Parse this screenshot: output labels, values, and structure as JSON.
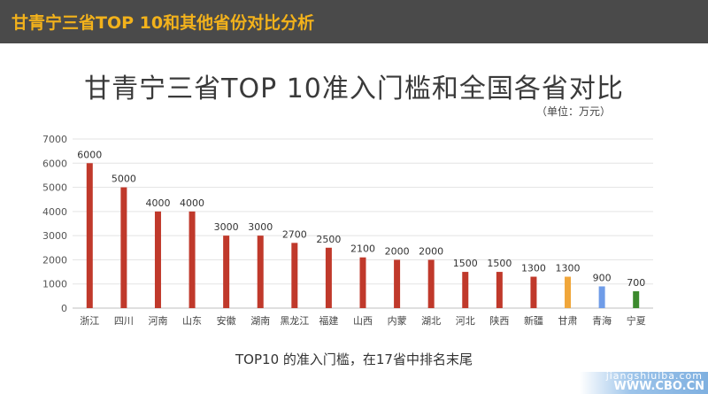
{
  "header": {
    "title": "甘青宁三省TOP  10和其他省份对比分析"
  },
  "chart_data": {
    "type": "bar",
    "title": "甘青宁三省TOP  10准入门槛和全国各省对比",
    "unit_note": "（单位：万元）",
    "categories": [
      "浙江",
      "四川",
      "河南",
      "山东",
      "安徽",
      "湖南",
      "黑龙江",
      "福建",
      "山西",
      "内蒙",
      "湖北",
      "河北",
      "陕西",
      "新疆",
      "甘肃",
      "青海",
      "宁夏"
    ],
    "values": [
      6000,
      5000,
      4000,
      4000,
      3000,
      3000,
      2700,
      2500,
      2100,
      2000,
      2000,
      1500,
      1500,
      1300,
      1300,
      900,
      700
    ],
    "data_labels": [
      "6000",
      "5000",
      "4000",
      "4000",
      "3000",
      "3000",
      "2700",
      "2500",
      "2100",
      "2000",
      "2000",
      "1500",
      "1500",
      "1300",
      "1300",
      "900",
      "700"
    ],
    "colors": [
      "#c0392b",
      "#c0392b",
      "#c0392b",
      "#c0392b",
      "#c0392b",
      "#c0392b",
      "#c0392b",
      "#c0392b",
      "#c0392b",
      "#c0392b",
      "#c0392b",
      "#c0392b",
      "#c0392b",
      "#c0392b",
      "#f0a63a",
      "#6f9ce8",
      "#3c8a2e"
    ],
    "ylim": [
      0,
      7000
    ],
    "yticks": [
      "0",
      "1000",
      "2000",
      "3000",
      "4000",
      "5000",
      "6000",
      "7000"
    ],
    "grid": true
  },
  "caption": "TOP10 的准入门槛，在17省中排名末尾",
  "watermark": {
    "line1": "jiangshiuiba.com",
    "line2": "WWW.CBO.CN"
  }
}
